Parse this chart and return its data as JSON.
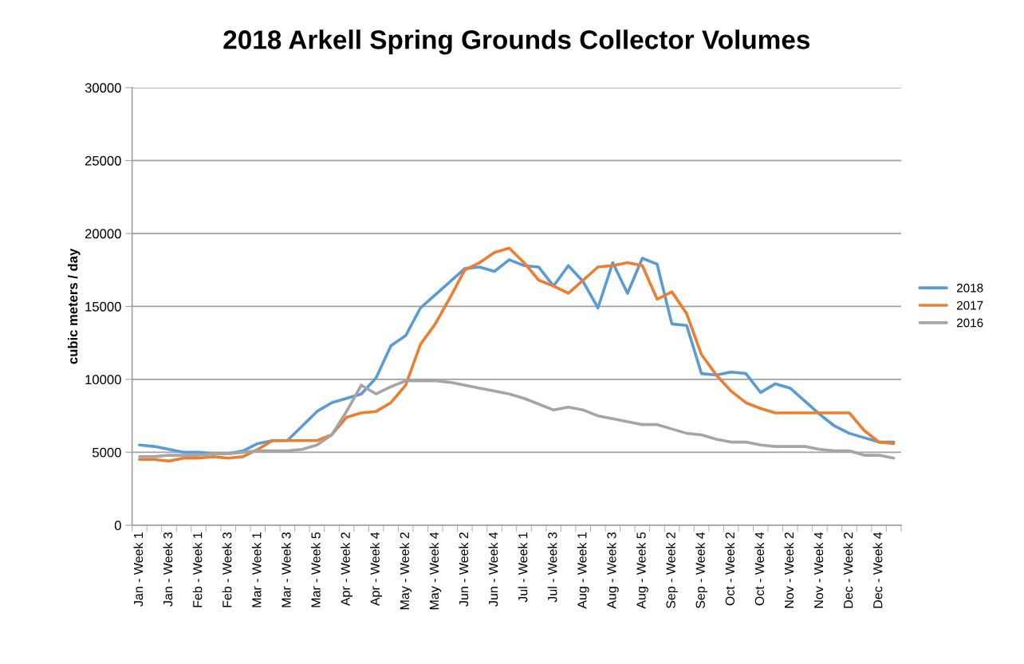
{
  "chart_data": {
    "type": "line",
    "title": "2018 Arkell Spring Grounds Collector Volumes",
    "ylabel": "cubic meters / day",
    "categories": [
      "Jan - Week 1",
      null,
      "Jan - Week 3",
      null,
      "Feb - Week 1",
      null,
      "Feb - Week 3",
      null,
      "Mar - Week 1",
      null,
      "Mar - Week 3",
      null,
      "Mar - Week 5",
      null,
      "Apr - Week 2",
      null,
      "Apr - Week 4",
      null,
      "May - Week 2",
      null,
      "May - Week 4",
      null,
      "Jun - Week 2",
      null,
      "Jun - Week 4",
      null,
      "Jul - Week 1",
      null,
      "Jul - Week 3",
      null,
      "Aug - Week 1",
      null,
      "Aug - Week 3",
      null,
      "Aug - Week 5",
      null,
      "Sep - Week 2",
      null,
      "Sep - Week 4",
      null,
      "Oct - Week 2",
      null,
      "Oct - Week 4",
      null,
      "Nov - Week 2",
      null,
      "Nov - Week 4",
      null,
      "Dec - Week 2",
      null,
      "Dec - Week 4",
      null
    ],
    "series": [
      {
        "name": "2018",
        "color": "#5b9bd5",
        "values": [
          5500,
          5400,
          5200,
          5000,
          5000,
          4900,
          4900,
          5100,
          5600,
          5800,
          5800,
          6800,
          7800,
          8400,
          8700,
          9000,
          10100,
          12300,
          13000,
          14900,
          15800,
          16700,
          17600,
          17700,
          17400,
          18200,
          17800,
          17700,
          16400,
          17800,
          16700,
          14900,
          18000,
          15900,
          18300,
          17900,
          13800,
          13700,
          10400,
          10300,
          10500,
          10400,
          9100,
          9700,
          9400,
          8500,
          7600,
          6800,
          6300,
          6000,
          5700,
          5700
        ]
      },
      {
        "name": "2017",
        "color": "#ed7d31",
        "values": [
          4500,
          4500,
          4400,
          4600,
          4600,
          4700,
          4600,
          4700,
          5200,
          5800,
          5800,
          5800,
          5800,
          6200,
          7400,
          7700,
          7800,
          8400,
          9600,
          12400,
          13800,
          15600,
          17500,
          18000,
          18700,
          19000,
          18000,
          16800,
          16400,
          15900,
          16800,
          17700,
          17800,
          18000,
          17800,
          15500,
          16000,
          14500,
          11700,
          10300,
          9200,
          8400,
          8000,
          7700,
          7700,
          7700,
          7700,
          7700,
          7700,
          6500,
          5700,
          5600
        ]
      },
      {
        "name": "2016",
        "color": "#a5a5a5",
        "values": [
          4700,
          4700,
          4800,
          4800,
          4800,
          4900,
          4900,
          5000,
          5100,
          5100,
          5100,
          5200,
          5500,
          6200,
          7800,
          9600,
          9000,
          9500,
          9900,
          9900,
          9900,
          9800,
          9600,
          9400,
          9200,
          9000,
          8700,
          8300,
          7900,
          8100,
          7900,
          7500,
          7300,
          7100,
          6900,
          6900,
          6600,
          6300,
          6200,
          5900,
          5700,
          5700,
          5500,
          5400,
          5400,
          5400,
          5200,
          5100,
          5100,
          4800,
          4800,
          4600
        ]
      }
    ],
    "ylim": [
      0,
      30000
    ],
    "yticks": [
      0,
      5000,
      10000,
      15000,
      20000,
      25000,
      30000
    ],
    "grid": "y",
    "legend": "right",
    "marker": "none",
    "line_style": "solid"
  }
}
